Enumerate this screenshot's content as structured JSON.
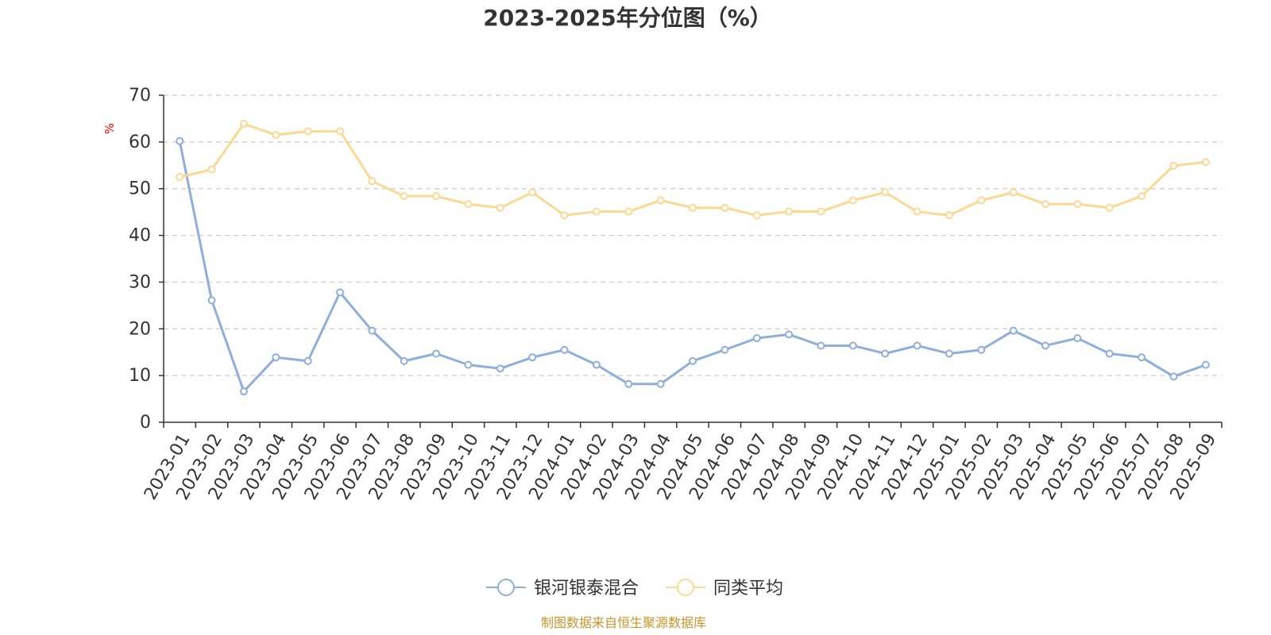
{
  "chart_data": {
    "type": "line",
    "title": "2023-2025年分位图（%）",
    "ylabel": "%",
    "xlabel": "",
    "ylim": [
      0,
      70
    ],
    "yticks": [
      0,
      10,
      20,
      30,
      40,
      50,
      60,
      70
    ],
    "grid": "horizontal-dashed",
    "legend_position": "bottom-center",
    "categories": [
      "2023-01",
      "2023-02",
      "2023-03",
      "2023-04",
      "2023-05",
      "2023-06",
      "2023-07",
      "2023-08",
      "2023-09",
      "2023-10",
      "2023-11",
      "2023-12",
      "2024-01",
      "2024-02",
      "2024-03",
      "2024-04",
      "2024-05",
      "2024-06",
      "2024-07",
      "2024-08",
      "2024-09",
      "2024-10",
      "2024-11",
      "2024-12",
      "2025-01",
      "2025-02",
      "2025-03",
      "2025-04",
      "2025-05",
      "2025-06",
      "2025-07",
      "2025-08",
      "2025-09"
    ],
    "series": [
      {
        "name": "银河银泰混合",
        "color": "#8eaedb",
        "values": [
          60.2,
          26.1,
          6.6,
          13.9,
          13.1,
          27.8,
          19.6,
          13.1,
          14.7,
          12.3,
          11.5,
          13.9,
          15.5,
          12.3,
          8.2,
          8.2,
          13.1,
          15.5,
          18.0,
          18.8,
          16.4,
          16.4,
          14.7,
          16.4,
          14.7,
          15.5,
          19.6,
          16.4,
          18.0,
          14.7,
          13.9,
          9.8,
          12.3
        ]
      },
      {
        "name": "同类平均",
        "color": "#fcd993",
        "values": [
          52.5,
          54.1,
          63.9,
          61.5,
          62.3,
          62.3,
          51.6,
          48.4,
          48.4,
          46.7,
          45.9,
          49.2,
          44.3,
          45.1,
          45.1,
          47.5,
          45.9,
          45.9,
          44.3,
          45.1,
          45.1,
          47.5,
          49.2,
          45.1,
          44.3,
          47.5,
          49.2,
          46.7,
          46.7,
          45.9,
          48.4,
          54.9,
          55.7
        ]
      }
    ]
  },
  "source_text": "制图数据来自恒生聚源数据库"
}
